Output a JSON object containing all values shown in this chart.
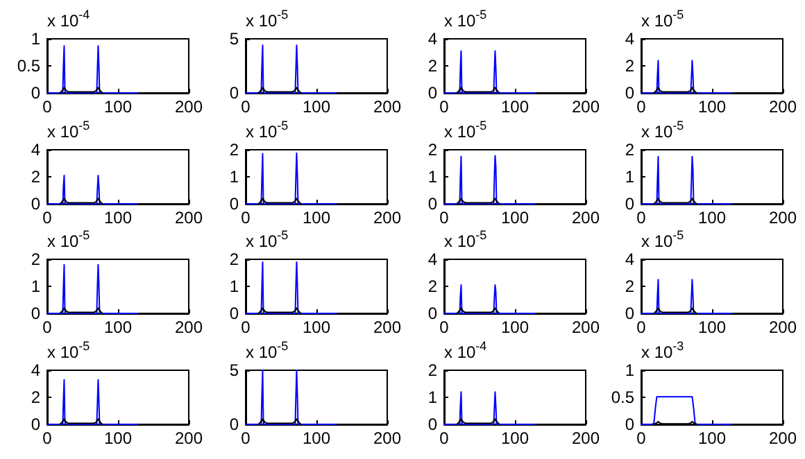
{
  "chart_data": [
    {
      "type": "line",
      "annotations": [
        "x 10$^{-4}$"
      ],
      "xlim": [
        0,
        200
      ],
      "xticks": [
        0,
        100,
        200
      ],
      "ylim": [
        0,
        1
      ],
      "yticks": [
        0,
        0.5,
        1
      ],
      "series": [
        {
          "color": "#0000ff",
          "x": [
            0,
            22,
            23,
            24,
            25,
            26,
            70,
            71,
            72,
            73,
            74,
            128
          ],
          "values": [
            0,
            0,
            0.52,
            0.87,
            0.04,
            0,
            0,
            0.44,
            0.87,
            0.52,
            0,
            0
          ]
        },
        {
          "color": "#000000",
          "x": [
            18,
            21,
            24,
            27,
            30,
            66,
            69,
            72,
            75,
            78
          ],
          "values": [
            0,
            0.04,
            0.1,
            0.04,
            0.02,
            0.02,
            0.04,
            0.1,
            0.04,
            0
          ]
        }
      ]
    },
    {
      "type": "line",
      "annotations": [
        "x 10$^{-5}$"
      ],
      "xlim": [
        0,
        200
      ],
      "xticks": [
        0,
        100,
        200
      ],
      "ylim": [
        0,
        5
      ],
      "yticks": [
        0,
        5
      ],
      "series": [
        {
          "color": "#0000ff",
          "x": [
            0,
            22,
            23,
            24,
            25,
            26,
            70,
            71,
            72,
            73,
            74,
            128
          ],
          "values": [
            0,
            0,
            2.6,
            4.4,
            0.2,
            0,
            0,
            2.2,
            4.4,
            2.6,
            0,
            0
          ]
        },
        {
          "color": "#000000",
          "x": [
            18,
            21,
            24,
            27,
            30,
            66,
            69,
            72,
            75,
            78
          ],
          "values": [
            0,
            0.2,
            0.5,
            0.2,
            0.1,
            0.1,
            0.2,
            0.5,
            0.2,
            0
          ]
        }
      ]
    },
    {
      "type": "line",
      "annotations": [
        "x 10$^{-5}$"
      ],
      "xlim": [
        0,
        200
      ],
      "xticks": [
        0,
        100,
        200
      ],
      "ylim": [
        0,
        4
      ],
      "yticks": [
        0,
        2,
        4
      ],
      "series": [
        {
          "color": "#0000ff",
          "x": [
            0,
            22,
            23,
            24,
            25,
            26,
            70,
            71,
            72,
            73,
            74,
            128
          ],
          "values": [
            0,
            0,
            1.9,
            3.1,
            0.15,
            0,
            0,
            1.6,
            3.1,
            1.9,
            0,
            0
          ]
        },
        {
          "color": "#000000",
          "x": [
            18,
            21,
            24,
            27,
            30,
            66,
            69,
            72,
            75,
            78
          ],
          "values": [
            0,
            0.15,
            0.4,
            0.15,
            0.08,
            0.08,
            0.15,
            0.4,
            0.15,
            0
          ]
        }
      ]
    },
    {
      "type": "line",
      "annotations": [
        "x 10$^{-5}$"
      ],
      "xlim": [
        0,
        200
      ],
      "xticks": [
        0,
        100,
        200
      ],
      "ylim": [
        0,
        4
      ],
      "yticks": [
        0,
        2,
        4
      ],
      "series": [
        {
          "color": "#0000ff",
          "x": [
            0,
            22,
            23,
            24,
            25,
            26,
            70,
            71,
            72,
            73,
            74,
            128
          ],
          "values": [
            0,
            0,
            1.4,
            2.4,
            0.1,
            0,
            0,
            1.2,
            2.4,
            1.4,
            0,
            0
          ]
        },
        {
          "color": "#000000",
          "x": [
            18,
            21,
            24,
            27,
            30,
            66,
            69,
            72,
            75,
            78
          ],
          "values": [
            0,
            0.15,
            0.4,
            0.15,
            0.08,
            0.08,
            0.15,
            0.4,
            0.15,
            0
          ]
        }
      ]
    },
    {
      "type": "line",
      "annotations": [
        "x 10$^{-5}$"
      ],
      "xlim": [
        0,
        200
      ],
      "xticks": [
        0,
        100,
        200
      ],
      "ylim": [
        0,
        4
      ],
      "yticks": [
        0,
        2,
        4
      ],
      "series": [
        {
          "color": "#0000ff",
          "x": [
            0,
            22,
            23,
            24,
            25,
            26,
            70,
            71,
            72,
            73,
            74,
            128
          ],
          "values": [
            0,
            0,
            1.3,
            2.1,
            0.1,
            0,
            0,
            1.1,
            2.1,
            1.3,
            0,
            0
          ]
        },
        {
          "color": "#000000",
          "x": [
            18,
            21,
            24,
            27,
            30,
            66,
            69,
            72,
            75,
            78
          ],
          "values": [
            0,
            0.15,
            0.4,
            0.15,
            0.08,
            0.08,
            0.15,
            0.4,
            0.15,
            0
          ]
        }
      ]
    },
    {
      "type": "line",
      "annotations": [
        "x 10$^{-5}$"
      ],
      "xlim": [
        0,
        200
      ],
      "xticks": [
        0,
        100,
        200
      ],
      "ylim": [
        0,
        2
      ],
      "yticks": [
        0,
        1,
        2
      ],
      "series": [
        {
          "color": "#0000ff",
          "x": [
            0,
            22,
            23,
            24,
            25,
            26,
            70,
            71,
            72,
            73,
            74,
            128
          ],
          "values": [
            0,
            0,
            1.0,
            1.85,
            0.1,
            0,
            0,
            1.0,
            1.88,
            1.1,
            0,
            0
          ]
        },
        {
          "color": "#000000",
          "x": [
            18,
            21,
            24,
            27,
            30,
            66,
            69,
            72,
            75,
            78
          ],
          "values": [
            0,
            0.08,
            0.2,
            0.08,
            0.04,
            0.04,
            0.08,
            0.2,
            0.08,
            0
          ]
        }
      ]
    },
    {
      "type": "line",
      "annotations": [
        "x 10$^{-5}$"
      ],
      "xlim": [
        0,
        200
      ],
      "xticks": [
        0,
        100,
        200
      ],
      "ylim": [
        0,
        2
      ],
      "yticks": [
        0,
        1,
        2
      ],
      "series": [
        {
          "color": "#0000ff",
          "x": [
            0,
            22,
            23,
            24,
            25,
            26,
            70,
            71,
            72,
            73,
            74,
            128
          ],
          "values": [
            0,
            0,
            1.0,
            1.75,
            0.1,
            0,
            0,
            1.0,
            1.78,
            1.4,
            0,
            0
          ]
        },
        {
          "color": "#000000",
          "x": [
            18,
            21,
            24,
            27,
            30,
            66,
            69,
            72,
            75,
            78
          ],
          "values": [
            0,
            0.08,
            0.2,
            0.08,
            0.04,
            0.04,
            0.08,
            0.2,
            0.08,
            0
          ]
        }
      ]
    },
    {
      "type": "line",
      "annotations": [
        "x 10$^{-5}$"
      ],
      "xlim": [
        0,
        200
      ],
      "xticks": [
        0,
        100,
        200
      ],
      "ylim": [
        0,
        2
      ],
      "yticks": [
        0,
        1,
        2
      ],
      "series": [
        {
          "color": "#0000ff",
          "x": [
            0,
            22,
            23,
            24,
            25,
            26,
            70,
            71,
            72,
            73,
            74,
            128
          ],
          "values": [
            0,
            0,
            0.95,
            1.75,
            0.1,
            0,
            0,
            0.9,
            1.75,
            1.3,
            0,
            0
          ]
        },
        {
          "color": "#000000",
          "x": [
            18,
            21,
            24,
            27,
            30,
            66,
            69,
            72,
            75,
            78
          ],
          "values": [
            0,
            0.08,
            0.2,
            0.08,
            0.04,
            0.04,
            0.08,
            0.2,
            0.08,
            0
          ]
        }
      ]
    },
    {
      "type": "line",
      "annotations": [
        "x 10$^{-5}$"
      ],
      "xlim": [
        0,
        200
      ],
      "xticks": [
        0,
        100,
        200
      ],
      "ylim": [
        0,
        2
      ],
      "yticks": [
        0,
        1,
        2
      ],
      "series": [
        {
          "color": "#0000ff",
          "x": [
            0,
            22,
            23,
            24,
            25,
            26,
            70,
            71,
            72,
            73,
            74,
            128
          ],
          "values": [
            0,
            0,
            1.0,
            1.8,
            0.1,
            0,
            0,
            1.0,
            1.8,
            1.1,
            0,
            0
          ]
        },
        {
          "color": "#000000",
          "x": [
            18,
            21,
            24,
            27,
            30,
            66,
            69,
            72,
            75,
            78
          ],
          "values": [
            0,
            0.08,
            0.2,
            0.08,
            0.04,
            0.04,
            0.08,
            0.2,
            0.08,
            0
          ]
        }
      ]
    },
    {
      "type": "line",
      "annotations": [
        "x 10$^{-5}$"
      ],
      "xlim": [
        0,
        200
      ],
      "xticks": [
        0,
        100,
        200
      ],
      "ylim": [
        0,
        2
      ],
      "yticks": [
        0,
        1,
        2
      ],
      "series": [
        {
          "color": "#0000ff",
          "x": [
            0,
            22,
            23,
            24,
            25,
            26,
            70,
            71,
            72,
            73,
            74,
            128
          ],
          "values": [
            0,
            0,
            1.0,
            1.9,
            0.1,
            0,
            0,
            1.0,
            1.9,
            1.1,
            0,
            0
          ]
        },
        {
          "color": "#000000",
          "x": [
            18,
            21,
            24,
            27,
            30,
            66,
            69,
            72,
            75,
            78
          ],
          "values": [
            0,
            0.08,
            0.2,
            0.08,
            0.04,
            0.04,
            0.08,
            0.2,
            0.08,
            0
          ]
        }
      ]
    },
    {
      "type": "line",
      "annotations": [
        "x 10$^{-5}$"
      ],
      "xlim": [
        0,
        200
      ],
      "xticks": [
        0,
        100,
        200
      ],
      "ylim": [
        0,
        4
      ],
      "yticks": [
        0,
        2,
        4
      ],
      "series": [
        {
          "color": "#0000ff",
          "x": [
            0,
            22,
            23,
            24,
            25,
            26,
            70,
            71,
            72,
            73,
            74,
            128
          ],
          "values": [
            0,
            0,
            1.3,
            2.1,
            0.1,
            0,
            0,
            1.2,
            2.1,
            1.6,
            0,
            0
          ]
        },
        {
          "color": "#000000",
          "x": [
            18,
            21,
            24,
            27,
            30,
            66,
            69,
            72,
            75,
            78
          ],
          "values": [
            0,
            0.15,
            0.4,
            0.15,
            0.08,
            0.08,
            0.15,
            0.4,
            0.15,
            0
          ]
        }
      ]
    },
    {
      "type": "line",
      "annotations": [
        "x 10$^{-5}$"
      ],
      "xlim": [
        0,
        200
      ],
      "xticks": [
        0,
        100,
        200
      ],
      "ylim": [
        0,
        4
      ],
      "yticks": [
        0,
        2,
        4
      ],
      "series": [
        {
          "color": "#0000ff",
          "x": [
            0,
            22,
            23,
            24,
            25,
            26,
            70,
            71,
            72,
            73,
            74,
            128
          ],
          "values": [
            0,
            0,
            1.4,
            2.5,
            0.1,
            0,
            0,
            1.3,
            2.5,
            1.4,
            0,
            0
          ]
        },
        {
          "color": "#000000",
          "x": [
            18,
            21,
            24,
            27,
            30,
            66,
            69,
            72,
            75,
            78
          ],
          "values": [
            0,
            0.15,
            0.4,
            0.15,
            0.08,
            0.08,
            0.15,
            0.4,
            0.15,
            0
          ]
        }
      ]
    },
    {
      "type": "line",
      "annotations": [
        "x 10$^{-5}$"
      ],
      "xlim": [
        0,
        200
      ],
      "xticks": [
        0,
        100,
        200
      ],
      "ylim": [
        0,
        4
      ],
      "yticks": [
        0,
        2,
        4
      ],
      "series": [
        {
          "color": "#0000ff",
          "x": [
            0,
            22,
            23,
            24,
            25,
            26,
            70,
            71,
            72,
            73,
            74,
            128
          ],
          "values": [
            0,
            0,
            1.8,
            3.3,
            0.2,
            0,
            0,
            1.6,
            3.3,
            1.8,
            0,
            0
          ]
        },
        {
          "color": "#000000",
          "x": [
            18,
            21,
            24,
            27,
            30,
            66,
            69,
            72,
            75,
            78
          ],
          "values": [
            0,
            0.15,
            0.4,
            0.15,
            0.08,
            0.08,
            0.15,
            0.4,
            0.15,
            0
          ]
        }
      ]
    },
    {
      "type": "line",
      "annotations": [
        "x 10$^{-5}$"
      ],
      "xlim": [
        0,
        200
      ],
      "xticks": [
        0,
        100,
        200
      ],
      "ylim": [
        0,
        5
      ],
      "yticks": [
        0,
        5
      ],
      "series": [
        {
          "color": "#0000ff",
          "x": [
            0,
            22,
            23,
            24,
            25,
            26,
            70,
            71,
            72,
            73,
            74,
            128
          ],
          "values": [
            0,
            0,
            2.8,
            5,
            0.2,
            0,
            0,
            2.6,
            5,
            2.8,
            0,
            0
          ]
        },
        {
          "color": "#000000",
          "x": [
            18,
            21,
            24,
            27,
            30,
            66,
            69,
            72,
            75,
            78
          ],
          "values": [
            0,
            0.2,
            0.5,
            0.2,
            0.1,
            0.1,
            0.2,
            0.5,
            0.2,
            0
          ]
        }
      ]
    },
    {
      "type": "line",
      "annotations": [
        "x 10$^{-4}$"
      ],
      "xlim": [
        0,
        200
      ],
      "xticks": [
        0,
        100,
        200
      ],
      "ylim": [
        0,
        2
      ],
      "yticks": [
        0,
        1,
        2
      ],
      "series": [
        {
          "color": "#0000ff",
          "x": [
            0,
            22,
            23,
            24,
            25,
            26,
            70,
            71,
            72,
            73,
            74,
            128
          ],
          "values": [
            0,
            0,
            0.7,
            1.2,
            0.05,
            0,
            0,
            0.6,
            1.2,
            0.7,
            0,
            0
          ]
        },
        {
          "color": "#000000",
          "x": [
            18,
            21,
            24,
            27,
            30,
            66,
            69,
            72,
            75,
            78
          ],
          "values": [
            0,
            0.08,
            0.2,
            0.08,
            0.04,
            0.04,
            0.08,
            0.2,
            0.08,
            0
          ]
        }
      ]
    },
    {
      "type": "line",
      "annotations": [
        "x 10$^{-3}$"
      ],
      "xlim": [
        0,
        200
      ],
      "xticks": [
        0,
        100,
        200
      ],
      "ylim": [
        0,
        1
      ],
      "yticks": [
        0,
        0.5,
        1
      ],
      "series": [
        {
          "color": "#0000ff",
          "x": [
            0,
            16,
            18,
            20,
            22,
            72,
            74,
            76,
            78,
            128
          ],
          "values": [
            0,
            0,
            0.03,
            0.3,
            0.51,
            0.51,
            0.3,
            0.03,
            0,
            0
          ]
        },
        {
          "color": "#000000",
          "x": [
            18,
            21,
            24,
            27,
            30,
            66,
            69,
            72,
            75,
            78
          ],
          "values": [
            0,
            0.02,
            0.05,
            0.02,
            0.01,
            0.01,
            0.02,
            0.05,
            0.02,
            0
          ]
        }
      ]
    }
  ]
}
